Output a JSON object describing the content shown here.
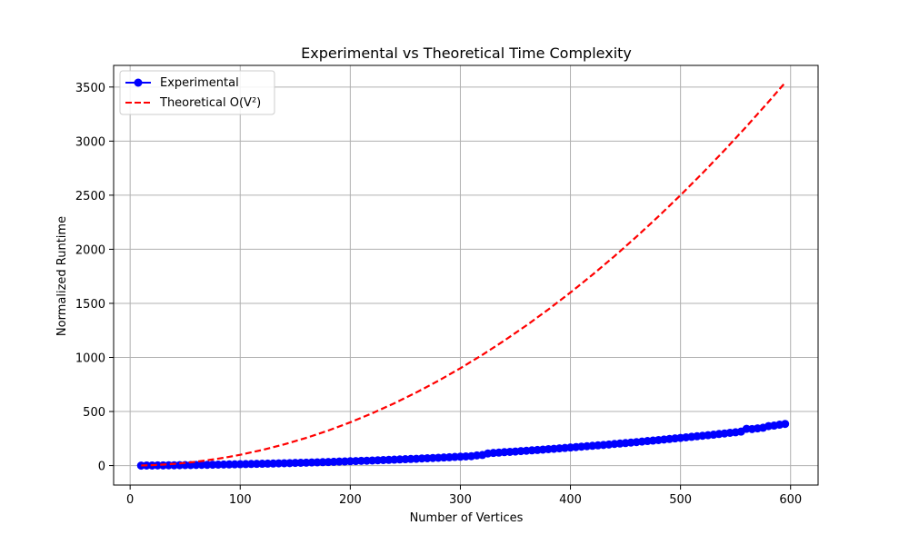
{
  "chart_data": {
    "type": "line",
    "title": "Experimental vs Theoretical Time Complexity",
    "xlabel": "Number of Vertices",
    "ylabel": "Normalized Runtime",
    "xlim": [
      -15,
      625
    ],
    "ylim": [
      -180,
      3700
    ],
    "xticks": [
      0,
      100,
      200,
      300,
      400,
      500,
      600
    ],
    "yticks": [
      0,
      500,
      1000,
      1500,
      2000,
      2500,
      3000,
      3500
    ],
    "grid": true,
    "legend": "top-left",
    "series": [
      {
        "name": "Experimental",
        "style": "solid line with circle markers",
        "color": "#0000ff",
        "x": [
          10,
          15,
          20,
          25,
          30,
          35,
          40,
          45,
          50,
          55,
          60,
          65,
          70,
          75,
          80,
          85,
          90,
          95,
          100,
          105,
          110,
          115,
          120,
          125,
          130,
          135,
          140,
          145,
          150,
          155,
          160,
          165,
          170,
          175,
          180,
          185,
          190,
          195,
          200,
          205,
          210,
          215,
          220,
          225,
          230,
          235,
          240,
          245,
          250,
          255,
          260,
          265,
          270,
          275,
          280,
          285,
          290,
          295,
          300,
          305,
          310,
          315,
          320,
          325,
          330,
          335,
          340,
          345,
          350,
          355,
          360,
          365,
          370,
          375,
          380,
          385,
          390,
          395,
          400,
          405,
          410,
          415,
          420,
          425,
          430,
          435,
          440,
          445,
          450,
          455,
          460,
          465,
          470,
          475,
          480,
          485,
          490,
          495,
          500,
          505,
          510,
          515,
          520,
          525,
          530,
          535,
          540,
          545,
          550,
          555,
          560,
          565,
          570,
          575,
          580,
          585,
          590,
          595
        ],
        "y": [
          0,
          1,
          1,
          2,
          2,
          3,
          3,
          4,
          5,
          5,
          6,
          7,
          7,
          8,
          9,
          10,
          11,
          12,
          13,
          14,
          15,
          16,
          17,
          18,
          19,
          21,
          22,
          23,
          25,
          26,
          27,
          29,
          30,
          32,
          33,
          35,
          37,
          38,
          40,
          42,
          44,
          45,
          47,
          49,
          51,
          53,
          55,
          57,
          59,
          61,
          63,
          66,
          68,
          70,
          72,
          75,
          77,
          80,
          82,
          85,
          87,
          94,
          98,
          112,
          117,
          120,
          124,
          127,
          130,
          134,
          137,
          141,
          144,
          148,
          152,
          155,
          159,
          163,
          167,
          171,
          175,
          179,
          183,
          187,
          191,
          195,
          200,
          204,
          208,
          213,
          217,
          222,
          227,
          231,
          236,
          241,
          246,
          251,
          256,
          261,
          266,
          271,
          276,
          281,
          286,
          292,
          297,
          303,
          308,
          314,
          340,
          338,
          344,
          350,
          365,
          370,
          378,
          385
        ]
      },
      {
        "name": "Theoretical O(V²)",
        "style": "dashed line",
        "color": "#ff0000",
        "x": [
          10,
          20,
          30,
          40,
          50,
          60,
          70,
          80,
          90,
          100,
          120,
          140,
          160,
          180,
          200,
          220,
          240,
          260,
          280,
          300,
          320,
          340,
          360,
          380,
          400,
          420,
          440,
          460,
          480,
          500,
          520,
          540,
          560,
          580,
          595
        ],
        "y": [
          1,
          4,
          9,
          16,
          25,
          36,
          49,
          64,
          81,
          100,
          144,
          196,
          256,
          324,
          400,
          484,
          576,
          676,
          784,
          900,
          1024,
          1156,
          1296,
          1444,
          1600,
          1764,
          1936,
          2116,
          2304,
          2500,
          2704,
          2916,
          3136,
          3364,
          3540
        ]
      }
    ]
  }
}
